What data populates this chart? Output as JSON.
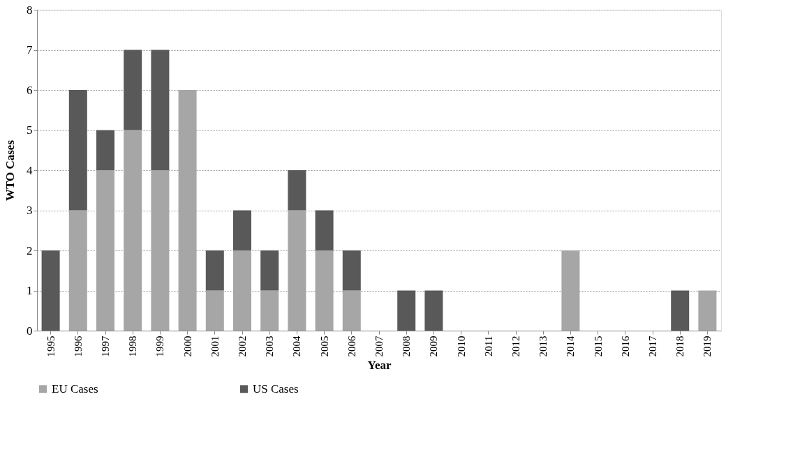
{
  "chart_data": {
    "type": "bar",
    "stacked": true,
    "xlabel": "Year",
    "ylabel": "WTO Cases",
    "categories": [
      "1995",
      "1996",
      "1997",
      "1998",
      "1999",
      "2000",
      "2001",
      "2002",
      "2003",
      "2004",
      "2005",
      "2006",
      "2007",
      "2008",
      "2009",
      "2010",
      "2011",
      "2012",
      "2013",
      "2014",
      "2015",
      "2016",
      "2017",
      "2018",
      "2019"
    ],
    "series": [
      {
        "name": "EU Cases",
        "color": "#a6a6a6",
        "values": [
          0,
          3,
          4,
          5,
          4,
          6,
          1,
          2,
          1,
          3,
          2,
          1,
          0,
          0,
          0,
          0,
          0,
          0,
          0,
          2,
          0,
          0,
          0,
          0,
          1
        ]
      },
      {
        "name": "US Cases",
        "color": "#595959",
        "values": [
          2,
          3,
          1,
          2,
          3,
          0,
          1,
          1,
          1,
          1,
          1,
          1,
          0,
          1,
          1,
          0,
          0,
          0,
          0,
          0,
          0,
          0,
          0,
          1,
          0
        ]
      }
    ],
    "ylim": [
      0,
      8
    ],
    "yticks": [
      0,
      1,
      2,
      3,
      4,
      5,
      6,
      7,
      8
    ],
    "grid": "y",
    "legend": "bottom"
  }
}
